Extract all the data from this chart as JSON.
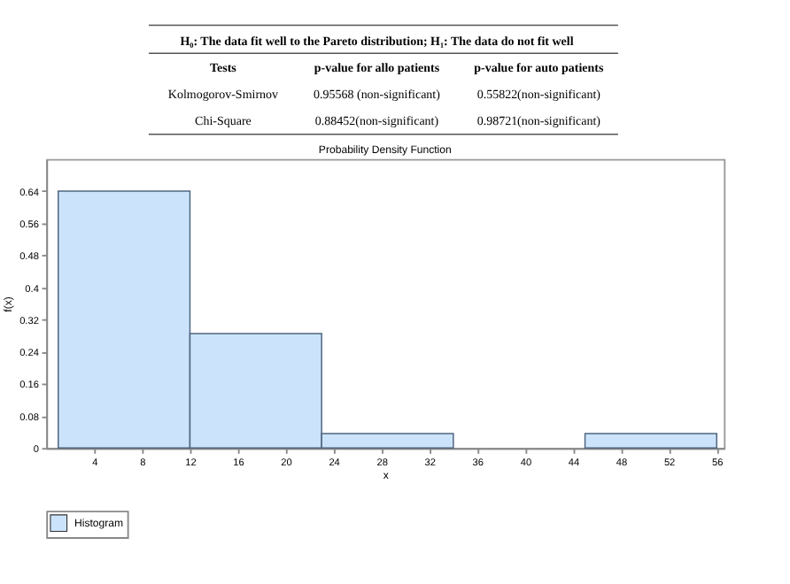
{
  "chart_data": {
    "type": "histogram",
    "title": "Probability Density Function",
    "xlabel": "x",
    "ylabel": "f(x)",
    "bins": [
      1,
      12,
      23,
      34,
      45,
      56
    ],
    "series": [
      {
        "name": "Histogram",
        "color": "#cce4fb",
        "values": [
          0.64,
          0.285,
          0.036,
          0,
          0.036
        ]
      }
    ],
    "xlim": [
      0,
      56.6
    ],
    "xticks": [
      4,
      8,
      12,
      16,
      20,
      24,
      28,
      32,
      36,
      40,
      44,
      48,
      52,
      56
    ],
    "ylim": [
      0,
      0.72
    ],
    "yticks": [
      0,
      0.08,
      0.16,
      0.24,
      0.32,
      0.4,
      0.48,
      0.56,
      0.64
    ],
    "grid": false,
    "legend": "bottom",
    "annotations": [
      "H₀: The data fit well to the Pareto distribution; H₁: The data do not fit well",
      "Tests",
      "p-value for allo patients",
      "p-value for auto patients",
      "Kolmogorov-Smirnov",
      "0.95568 (non-significant)",
      "0.55822(non-significant)",
      "Chi-Square",
      "0.88452(non-significant)",
      "0.98721(non-significant)"
    ]
  }
}
